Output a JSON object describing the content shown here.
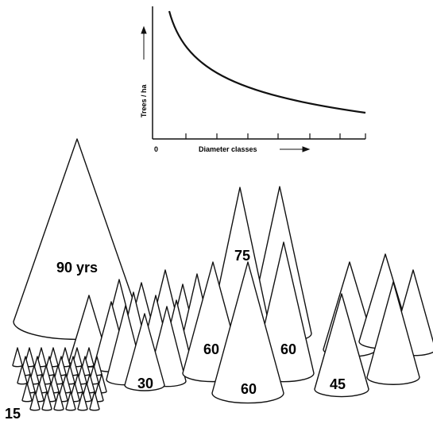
{
  "graph": {
    "y_label": "Trees / ha",
    "x_label": "Diameter classes",
    "origin": "0"
  },
  "cones": {
    "labels": [
      "90 yrs",
      "75",
      "60",
      "60",
      "60",
      "45",
      "30",
      "15"
    ]
  }
}
